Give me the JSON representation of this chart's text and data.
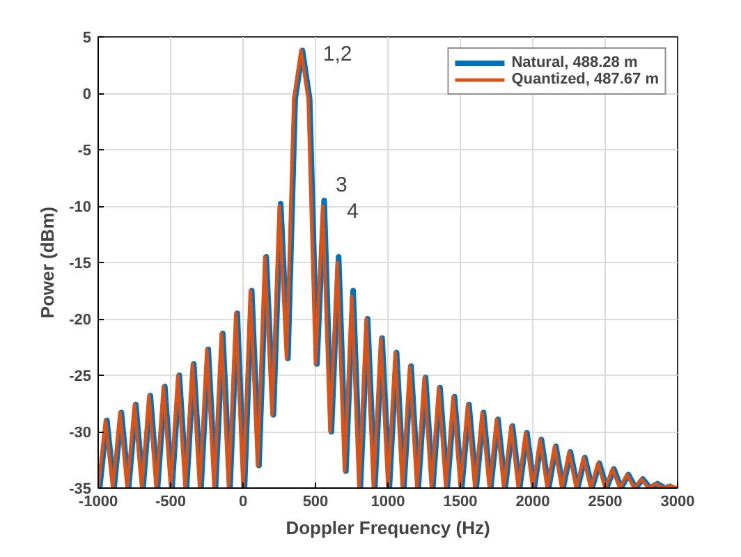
{
  "chart_data": {
    "type": "line",
    "xlabel": "Doppler Frequency (Hz)",
    "ylabel": "Power (dBm)",
    "xlim": [
      -1000,
      3000
    ],
    "ylim": [
      -35,
      5
    ],
    "xticks": [
      -1000,
      -500,
      0,
      500,
      1000,
      1500,
      2000,
      2500,
      3000
    ],
    "yticks": [
      -35,
      -30,
      -25,
      -20,
      -15,
      -10,
      -5,
      0,
      5
    ],
    "grid": true,
    "legend": "top right",
    "line_style": "solid",
    "annotations": [
      "1,2",
      "3",
      "4"
    ],
    "series": [
      {
        "name": "Natural, 488.28 m",
        "color": "#0072bd",
        "x": [
          -990,
          -940,
          -890,
          -840,
          -790,
          -740,
          -690,
          -640,
          -590,
          -540,
          -490,
          -440,
          -390,
          -340,
          -290,
          -240,
          -190,
          -140,
          -90,
          -40,
          10,
          60,
          110,
          160,
          210,
          260,
          310,
          360,
          410,
          460,
          510,
          560,
          610,
          660,
          710,
          760,
          810,
          860,
          910,
          960,
          1010,
          1060,
          1110,
          1160,
          1210,
          1260,
          1310,
          1360,
          1410,
          1460,
          1510,
          1560,
          1610,
          1660,
          1710,
          1760,
          1810,
          1860,
          1910,
          1960,
          2010,
          2060,
          2110,
          2160,
          2210,
          2260,
          2310,
          2360,
          2410,
          2460,
          2510,
          2560,
          2610,
          2660,
          2710,
          2760,
          2810,
          2860,
          2910,
          2960
        ],
        "values": [
          -35,
          -29,
          -35,
          -28.3,
          -35,
          -27.6,
          -35,
          -26.8,
          -35,
          -26,
          -35,
          -25,
          -35,
          -24,
          -35,
          -22.7,
          -35,
          -21.3,
          -35,
          -19.5,
          -35,
          -17.5,
          -33,
          -14.5,
          -28.5,
          -9.8,
          -23.5,
          -0.5,
          3.8,
          -0.5,
          -24,
          -9.5,
          -30,
          -14.5,
          -33.5,
          -17.5,
          -35,
          -20,
          -35,
          -21.7,
          -35,
          -23,
          -35,
          -24.2,
          -35,
          -25.2,
          -35,
          -26.1,
          -35,
          -26.9,
          -35,
          -27.6,
          -35,
          -28.3,
          -35,
          -28.9,
          -35,
          -29.5,
          -35,
          -30.1,
          -35,
          -30.7,
          -35,
          -31.3,
          -35,
          -31.8,
          -35,
          -32.3,
          -35,
          -32.8,
          -35,
          -33.3,
          -35,
          -33.8,
          -35,
          -34.2,
          -35,
          -34.6,
          -35,
          -34.8
        ]
      },
      {
        "name": "Quantized, 487.67 m",
        "color": "#d95319",
        "x": [
          -1000,
          -950,
          -900,
          -850,
          -800,
          -750,
          -700,
          -650,
          -600,
          -550,
          -500,
          -450,
          -400,
          -350,
          -300,
          -250,
          -200,
          -150,
          -100,
          -50,
          0,
          50,
          100,
          150,
          200,
          250,
          300,
          350,
          400,
          450,
          500,
          550,
          600,
          650,
          700,
          750,
          800,
          850,
          900,
          950,
          1000,
          1050,
          1100,
          1150,
          1200,
          1250,
          1300,
          1350,
          1400,
          1450,
          1500,
          1550,
          1600,
          1650,
          1700,
          1750,
          1800,
          1850,
          1900,
          1950,
          2000,
          2050,
          2100,
          2150,
          2200,
          2250,
          2300,
          2350,
          2400,
          2450,
          2500,
          2550,
          2600,
          2650,
          2700,
          2750,
          2800,
          2850,
          2900,
          2950,
          3000
        ],
        "values": [
          -35,
          -29,
          -35,
          -28.3,
          -35,
          -27.6,
          -35,
          -26.8,
          -35,
          -26,
          -35,
          -25,
          -35,
          -24,
          -35,
          -22.7,
          -35,
          -21.3,
          -35,
          -19.5,
          -35,
          -17.5,
          -33,
          -14.5,
          -28.5,
          -10,
          -23.5,
          -0.5,
          3.8,
          -0.5,
          -24,
          -10,
          -30,
          -15,
          -33.5,
          -18,
          -35,
          -20,
          -35,
          -21.7,
          -35,
          -23,
          -35,
          -24.2,
          -35,
          -25.2,
          -35,
          -26.1,
          -35,
          -26.9,
          -35,
          -27.6,
          -35,
          -28.3,
          -35,
          -28.9,
          -35,
          -29.5,
          -35,
          -30.1,
          -35,
          -30.7,
          -35,
          -31.3,
          -35,
          -31.8,
          -35,
          -32.3,
          -35,
          -32.8,
          -35,
          -33.3,
          -35,
          -33.8,
          -35,
          -34.2,
          -35,
          -34.6,
          -35,
          -34.8,
          -35
        ]
      }
    ]
  }
}
